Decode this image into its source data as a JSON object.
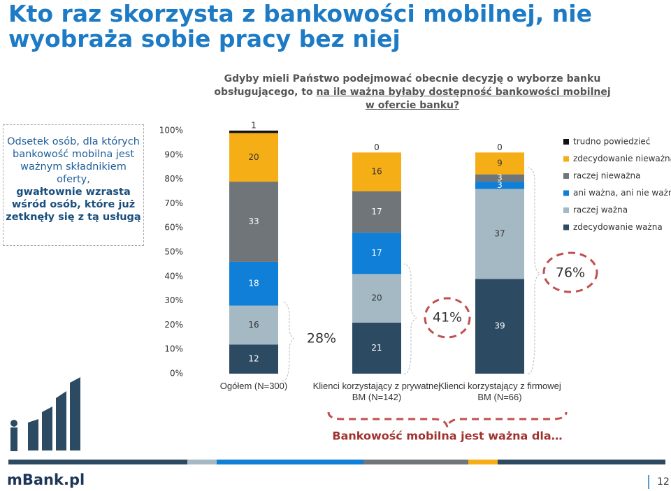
{
  "header": {
    "title": "Kto raz skorzysta z bankowości mobilnej, nie wyobraża sobie pracy bez niej"
  },
  "sidebox": {
    "text": "Odsetek osób, dla których bankowość mobilna jest ważnym składnikiem oferty,",
    "bold": "gwałtownie wzrasta wśród osób, które już zetknęły się z tą usługą"
  },
  "chart_data": {
    "type": "stacked_bar",
    "subtitle": "Gdyby mieli Państwo podejmować obecnie decyzję o wyborze banku obsługującego, to",
    "subtitle_underlined": "na ile ważna byłaby dostępność bankowości mobilnej w ofercie banku?",
    "categories": [
      "Ogółem (N=300)",
      "Klienci korzystający z prywatnej BM (N=142)",
      "Klienci korzystający z firmowej BM (N=66)"
    ],
    "series": [
      {
        "name": "zdecydowanie ważna",
        "color": "#2d4a63",
        "values": [
          12,
          21,
          39
        ]
      },
      {
        "name": "raczej ważna",
        "color": "#a4b9c4",
        "values": [
          16,
          20,
          37
        ]
      },
      {
        "name": "ani ważna, ani nie ważna",
        "color": "#0f7fd8",
        "values": [
          18,
          17,
          3
        ]
      },
      {
        "name": "raczej nieważna",
        "color": "#6f7579",
        "values": [
          33,
          17,
          3
        ]
      },
      {
        "name": "zdecydowanie nieważna",
        "color": "#f6ae17",
        "values": [
          20,
          16,
          9
        ]
      },
      {
        "name": "trudno powiedzieć",
        "color": "#111111",
        "values": [
          1,
          0,
          0
        ]
      }
    ],
    "ylim": [
      0,
      100
    ],
    "yticks": [
      {
        "value": 0,
        "label": "0%"
      },
      {
        "value": 10,
        "label": "10%"
      },
      {
        "value": 20,
        "label": "20%"
      },
      {
        "value": 30,
        "label": "30%"
      },
      {
        "value": 40,
        "label": "40%"
      },
      {
        "value": 50,
        "label": "50%"
      },
      {
        "value": 60,
        "label": "60%"
      },
      {
        "value": 70,
        "label": "70%"
      },
      {
        "value": 80,
        "label": "80%"
      },
      {
        "value": 90,
        "label": "90%"
      },
      {
        "value": 100,
        "label": "100%"
      }
    ],
    "annotations": [
      "28%",
      "41%",
      "76%"
    ],
    "brace_label": "Bankowość mobilna jest ważna dla…"
  },
  "footer": {
    "logo": "mBank.pl",
    "page": "12"
  }
}
